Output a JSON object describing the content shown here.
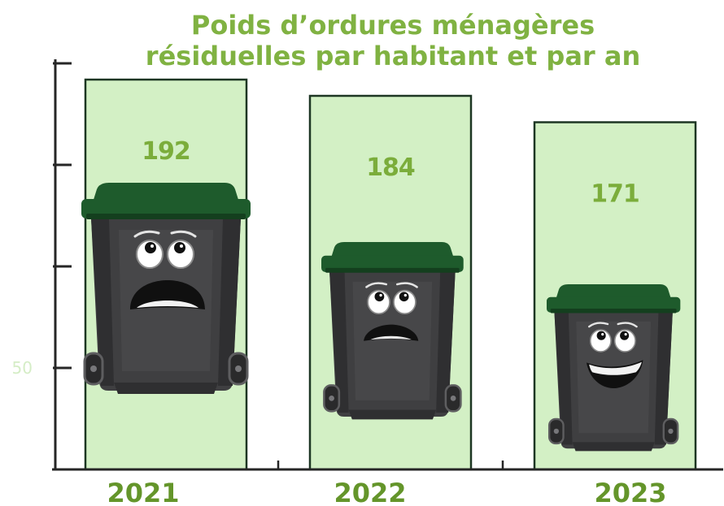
{
  "chart_data": {
    "type": "bar",
    "title_lines": [
      "Poids d’ordures ménagères",
      "résiduelles par habitant et par an"
    ],
    "categories": [
      "2021",
      "2022",
      "2023"
    ],
    "values": [
      192,
      184,
      171
    ],
    "ylim": [
      0,
      200
    ],
    "yticks": [
      50,
      100,
      150,
      200
    ],
    "ytick_labels": [
      "50",
      "",
      "",
      ""
    ],
    "xlabel": "",
    "ylabel": "",
    "grid": false,
    "legend": "none",
    "data_labels": true
  },
  "illustrations": {
    "bins": [
      {
        "icon": "scared-trash-bin-icon"
      },
      {
        "icon": "worried-trash-bin-icon"
      },
      {
        "icon": "smiling-trash-bin-icon"
      }
    ]
  },
  "colors": {
    "title": "#80b242",
    "value_label": "#7bad3b",
    "year_label": "#64952a",
    "bar_fill": "#d3f0c5",
    "bar_stroke": "#1d3623",
    "axis": "#262626",
    "tick_label": "#d5edc6",
    "bin_body": "#3f3f41",
    "bin_shadow": "#2f2f31",
    "bin_panel": "#474749",
    "bin_wheel": "#2a2a2b",
    "bin_lid": "#1e5b2c",
    "bin_lid_shadow": "#143f1e"
  }
}
